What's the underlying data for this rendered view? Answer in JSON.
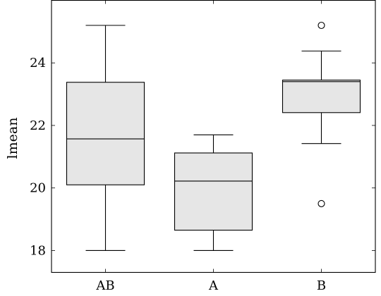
{
  "chart_data": {
    "type": "box",
    "title": "",
    "xlabel": "",
    "ylabel": "lmean",
    "ylim": [
      17.3,
      26.0
    ],
    "yticks": [
      "18",
      "20",
      "22",
      "24"
    ],
    "grid": false,
    "categories": [
      "AB",
      "A",
      "B"
    ],
    "boxes": [
      {
        "category": "AB",
        "whisker_low": 18.0,
        "q1": 20.1,
        "median": 21.57,
        "q3": 23.38,
        "whisker_high": 25.2,
        "outliers": []
      },
      {
        "category": "A",
        "whisker_low": 18.0,
        "q1": 18.65,
        "median": 20.22,
        "q3": 21.12,
        "whisker_high": 21.7,
        "outliers": []
      },
      {
        "category": "B",
        "whisker_low": 21.42,
        "q1": 22.41,
        "median": 23.4,
        "q3": 23.45,
        "whisker_high": 24.38,
        "outliers": [
          25.2,
          19.5
        ]
      }
    ],
    "colors": {
      "box_fill": "#e6e6e6",
      "stroke": "#000000"
    }
  }
}
